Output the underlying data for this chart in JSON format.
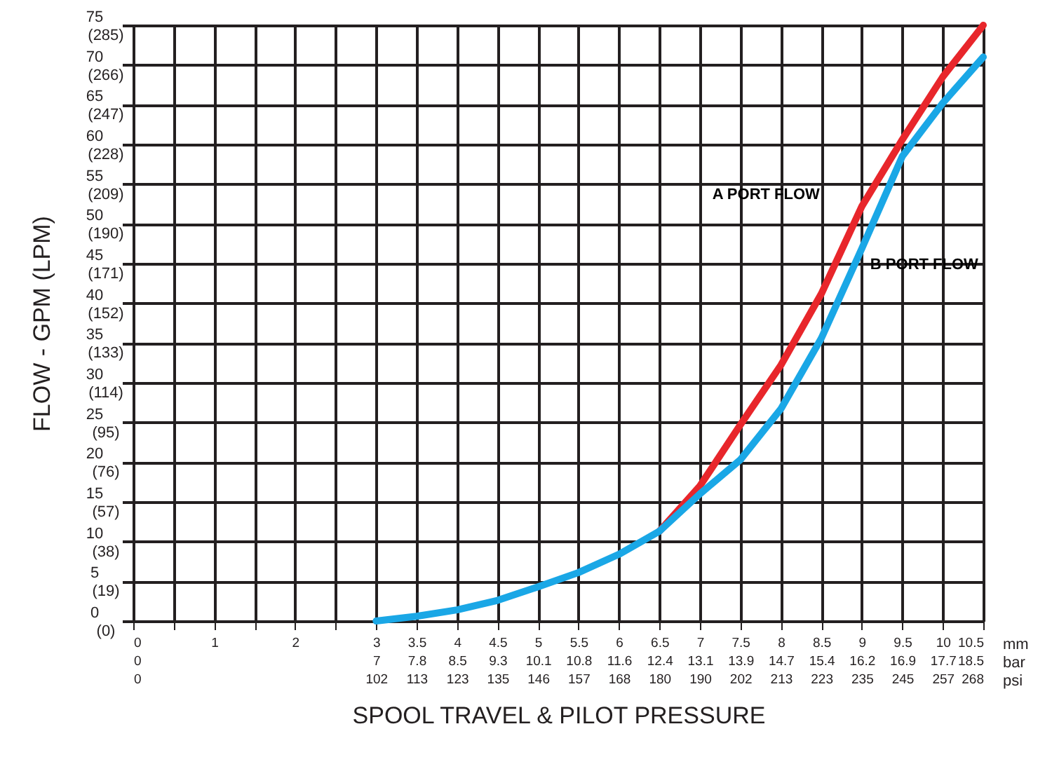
{
  "chart_data": {
    "type": "line",
    "xlabel": "SPOOL TRAVEL & PILOT PRESSURE",
    "ylabel": "FLOW - GPM (LPM)",
    "x": [
      3,
      3.5,
      4,
      4.5,
      5,
      5.5,
      6,
      6.5,
      7,
      7.5,
      8,
      8.5,
      9,
      9.5,
      10,
      10.5
    ],
    "series": [
      {
        "name": "A PORT FLOW",
        "color": "#e8262b",
        "values": [
          null,
          null,
          null,
          null,
          null,
          null,
          null,
          11.3,
          17,
          24.7,
          32.2,
          41.2,
          52.2,
          60.6,
          68.5,
          75
        ]
      },
      {
        "name": "B PORT FLOW",
        "color": "#1aa7e6",
        "values": [
          0,
          0.6,
          1.4,
          2.6,
          4.3,
          6.1,
          8.4,
          11.3,
          16,
          20.3,
          26.7,
          35.6,
          46.9,
          58.5,
          65.2,
          71
        ]
      }
    ],
    "xlim": [
      0,
      10.5
    ],
    "ylim": [
      0,
      75
    ],
    "xticks": [
      {
        "value": 0,
        "label": "0\n0\n0"
      },
      {
        "value": 0.5,
        "label": null
      },
      {
        "value": 1,
        "label": "1"
      },
      {
        "value": 1.5,
        "label": null
      },
      {
        "value": 2,
        "label": "2"
      },
      {
        "value": 2.5,
        "label": null
      },
      {
        "value": 3,
        "label": "3\n7\n102"
      },
      {
        "value": 3.5,
        "label": "3.5\n7.8\n113"
      },
      {
        "value": 4,
        "label": "4\n8.5\n123"
      },
      {
        "value": 4.5,
        "label": "4.5\n9.3\n135"
      },
      {
        "value": 5,
        "label": "5\n10.1\n146"
      },
      {
        "value": 5.5,
        "label": "5.5\n10.8\n157"
      },
      {
        "value": 6,
        "label": "6\n11.6\n168"
      },
      {
        "value": 6.5,
        "label": "6.5\n12.4\n180"
      },
      {
        "value": 7,
        "label": "7\n13.1\n190"
      },
      {
        "value": 7.5,
        "label": "7.5\n13.9\n202"
      },
      {
        "value": 8,
        "label": "8\n14.7\n213"
      },
      {
        "value": 8.5,
        "label": "8.5\n15.4\n223"
      },
      {
        "value": 9,
        "label": "9\n16.2\n235"
      },
      {
        "value": 9.5,
        "label": "9.5\n16.9\n245"
      },
      {
        "value": 10,
        "label": "10\n17.7\n257"
      },
      {
        "value": 10.5,
        "label": "10.5\n18.5\n268"
      }
    ],
    "yticks": [
      0,
      5,
      10,
      15,
      20,
      25,
      30,
      35,
      40,
      45,
      50,
      55,
      60,
      65,
      70,
      75
    ],
    "y2lim": [
      0,
      285
    ],
    "y2ticks": [
      {
        "value": 0,
        "label": "(0)"
      },
      {
        "value": 19,
        "label": "(19)"
      },
      {
        "value": 38,
        "label": "(38)"
      },
      {
        "value": 57,
        "label": "(57)"
      },
      {
        "value": 76,
        "label": "(76)"
      },
      {
        "value": 95,
        "label": "(95)"
      },
      {
        "value": 114,
        "label": "(114)"
      },
      {
        "value": 133,
        "label": "(133)"
      },
      {
        "value": 152,
        "label": "(152)"
      },
      {
        "value": 171,
        "label": "(171)"
      },
      {
        "value": 190,
        "label": "(190)"
      },
      {
        "value": 209,
        "label": "(209)"
      },
      {
        "value": 228,
        "label": "(228)"
      },
      {
        "value": 247,
        "label": "(247)"
      },
      {
        "value": 266,
        "label": "(266)"
      },
      {
        "value": 285,
        "label": "(285)"
      }
    ],
    "annotations": [
      "mm",
      "bar",
      "psi"
    ],
    "grid": true,
    "marker": "none",
    "line_style": "solid"
  }
}
